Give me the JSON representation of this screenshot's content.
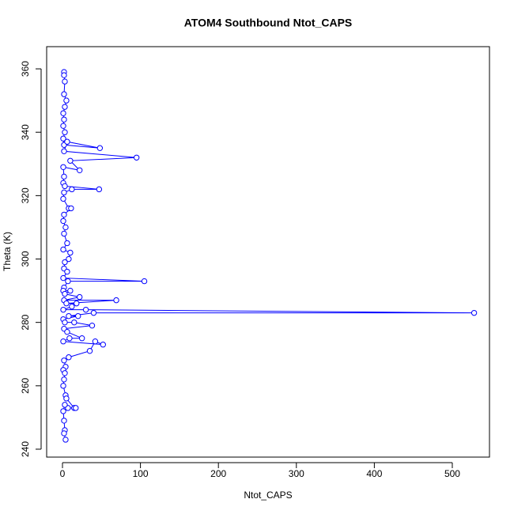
{
  "chart_data": {
    "type": "line",
    "title": "ATOM4 Southbound Ntot_CAPS",
    "xlabel": "Ntot_CAPS",
    "ylabel": "Theta (K)",
    "color": "#0000ff",
    "markers": true,
    "x": [
      2,
      2,
      3,
      2,
      5,
      3,
      1,
      2,
      1,
      3,
      1,
      2,
      48,
      6,
      2,
      95,
      10,
      22,
      1,
      2,
      1,
      3,
      47,
      12,
      2,
      1,
      8,
      11,
      2,
      1,
      4,
      2,
      6,
      1,
      10,
      8,
      3,
      2,
      6,
      1,
      105,
      7,
      2,
      1,
      10,
      3,
      22,
      2,
      69,
      5,
      18,
      12,
      1,
      30,
      528,
      40,
      8,
      20,
      1,
      3,
      15,
      38,
      2,
      6,
      25,
      9,
      1,
      52,
      42,
      35,
      8,
      2,
      4,
      1,
      3,
      2,
      1,
      4,
      5,
      15,
      17,
      7,
      3,
      1,
      2,
      3,
      2,
      4
    ],
    "values": [
      359,
      358,
      356,
      352,
      350,
      348,
      346,
      344,
      342,
      340,
      338,
      336,
      335,
      337,
      334,
      332,
      331,
      328,
      329,
      326,
      324,
      323,
      322,
      322,
      321,
      319,
      316,
      316,
      314,
      312,
      310,
      308,
      305,
      303,
      302,
      300,
      299,
      297,
      296,
      294,
      293,
      293,
      291,
      290,
      290,
      289,
      288,
      287,
      287,
      286,
      286,
      285,
      284,
      284,
      283,
      283,
      282,
      282,
      281,
      280,
      280,
      279,
      278,
      277,
      275,
      275,
      274,
      273,
      274,
      271,
      269,
      268,
      266,
      265,
      264,
      262,
      260,
      257,
      256,
      253,
      253,
      253,
      254,
      252,
      249,
      246,
      245,
      243
    ],
    "xlim": [
      -20.3,
      547.7
    ],
    "ylim": [
      237.5,
      367.0
    ],
    "xticks": [
      0,
      100,
      200,
      300,
      400,
      500
    ],
    "yticks": [
      240,
      260,
      280,
      300,
      320,
      340,
      360
    ]
  }
}
